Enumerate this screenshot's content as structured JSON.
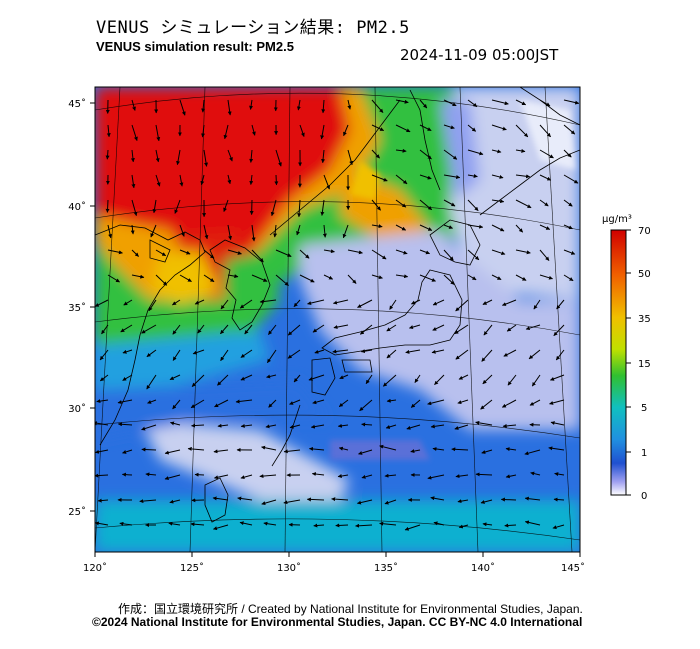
{
  "header": {
    "title_jp": "VENUS シミュレーション結果: PM2.5",
    "title_en": "VENUS simulation result: PM2.5",
    "timestamp": "2024-11-09 05:00JST"
  },
  "map": {
    "lon_ticks": [
      "120˚",
      "125˚",
      "130˚",
      "135˚",
      "140˚",
      "145˚"
    ],
    "lat_ticks": [
      "45˚",
      "40˚",
      "35˚",
      "30˚",
      "25˚"
    ],
    "wind_vectors": "shown"
  },
  "colorbar": {
    "unit": "μg/m³",
    "tick_labels": [
      "70",
      "50",
      "35",
      "15",
      "5",
      "1",
      "0"
    ],
    "colors": [
      "#e01010",
      "#f08000",
      "#e8e000",
      "#30c030",
      "#10c0c0",
      "#2090e0",
      "#2050d0",
      "#8080e0",
      "#ffffff"
    ]
  },
  "footer": {
    "credit_line1": "作成：国立環境研究所 / Created by National Institute for Environmental Studies, Japan.",
    "credit_line2": "©2024 National Institute for Environmental Studies, Japan. CC BY-NC 4.0 International"
  },
  "colors": {
    "high": "#e01010",
    "mid_high": "#f0a000",
    "mid": "#30c040",
    "low": "#10b0d0",
    "lower": "#2a70e0",
    "very_low": "#5a70d8",
    "clean": "#d8dcf0"
  }
}
